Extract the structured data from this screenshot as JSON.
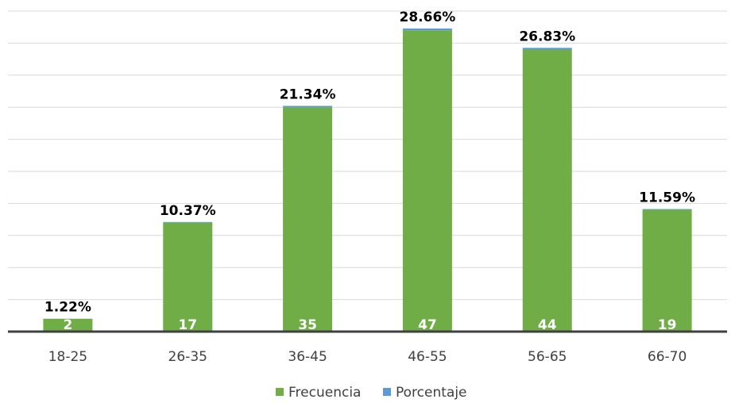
{
  "chart_data": {
    "type": "stacked_bar",
    "categories": [
      "18-25",
      "26-35",
      "36-45",
      "46-55",
      "56-65",
      "66-70"
    ],
    "series": [
      {
        "name": "Frecuencia",
        "color": "#70ad47",
        "values": [
          2,
          17,
          35,
          47,
          44,
          19
        ]
      },
      {
        "name": "Porcentaje",
        "color": "#5b9bd5",
        "values": [
          0.0122,
          0.1037,
          0.2134,
          0.2866,
          0.2683,
          0.1159
        ],
        "value_labels": [
          "1.22%",
          "10.37%",
          "21.34%",
          "28.66%",
          "26.83%",
          "11.59%"
        ]
      }
    ],
    "ylim": [
      0,
      50
    ],
    "yticks": [
      0,
      5,
      10,
      15,
      20,
      25,
      30,
      35,
      40,
      45,
      50
    ],
    "grid": true,
    "legend": "bottom"
  }
}
